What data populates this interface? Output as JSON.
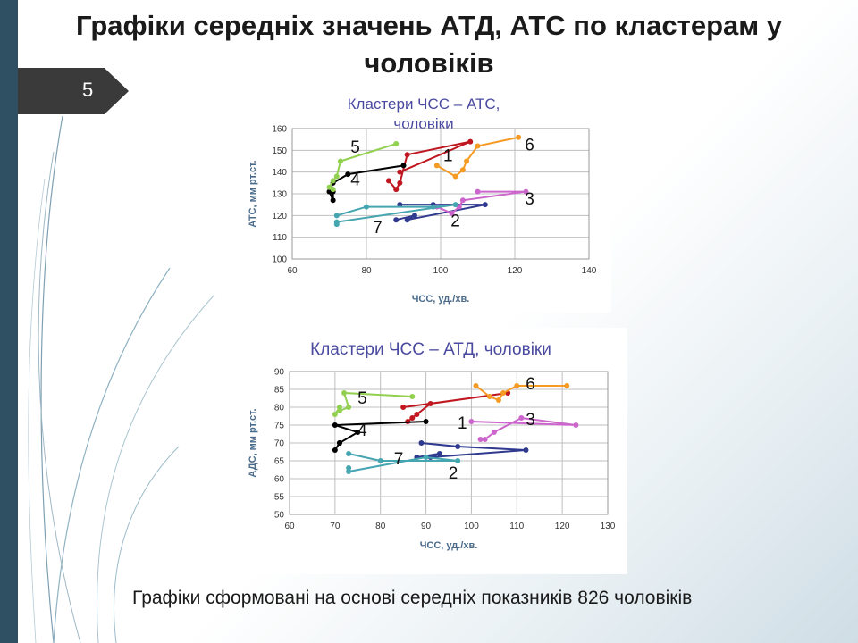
{
  "title": "Графіки середніх значень АТД, АТС по кластерам у чоловіків",
  "slide_number": "5",
  "caption": "Графіки сформовані на основі середніх показників 826 чоловіків",
  "colors": {
    "1": "#c0161f",
    "2": "#2f3a8f",
    "3": "#cc66cc",
    "4": "#000000",
    "5": "#92d050",
    "6": "#f59a23",
    "7": "#45a5b0"
  },
  "chart_data": [
    {
      "type": "line",
      "title": "Кластери ЧСС – АТС, чоловіки",
      "xlabel": "ЧСС, уд./хв.",
      "ylabel": "АТС, мм рт.ст.",
      "xlim": [
        60,
        140
      ],
      "ylim": [
        100,
        160
      ],
      "xticks": [
        "60",
        "80",
        "100",
        "120",
        "140"
      ],
      "yticks": [
        "100",
        "110",
        "120",
        "130",
        "140",
        "150",
        "160"
      ],
      "grid": true,
      "series": [
        {
          "name": "1",
          "points": [
            [
              86,
              136
            ],
            [
              88,
              132
            ],
            [
              89,
              135
            ],
            [
              91,
              148
            ],
            [
              108,
              154
            ],
            [
              89,
              140
            ]
          ]
        },
        {
          "name": "2",
          "points": [
            [
              89,
              125
            ],
            [
              98,
              125
            ],
            [
              112,
              125
            ],
            [
              91,
              118
            ],
            [
              93,
              120
            ],
            [
              88,
              118
            ]
          ]
        },
        {
          "name": "3",
          "points": [
            [
              110,
              131
            ],
            [
              123,
              131
            ],
            [
              106,
              127
            ],
            [
              105,
              124
            ],
            [
              103,
              121
            ],
            [
              99,
              124
            ]
          ]
        },
        {
          "name": "4",
          "points": [
            [
              90,
              143
            ],
            [
              75,
              139
            ],
            [
              71,
              135
            ],
            [
              70,
              131
            ],
            [
              71,
              127
            ],
            [
              71,
              131
            ]
          ]
        },
        {
          "name": "5",
          "points": [
            [
              88,
              153
            ],
            [
              73,
              145
            ],
            [
              72,
              138
            ],
            [
              71,
              136
            ],
            [
              70,
              133
            ],
            [
              71,
              132
            ]
          ]
        },
        {
          "name": "6",
          "points": [
            [
              121,
              156
            ],
            [
              110,
              152
            ],
            [
              107,
              145
            ],
            [
              106,
              141
            ],
            [
              104,
              138
            ],
            [
              99,
              143
            ]
          ]
        },
        {
          "name": "7",
          "points": [
            [
              72,
              120
            ],
            [
              80,
              124
            ],
            [
              98,
              124
            ],
            [
              104,
              125
            ],
            [
              72,
              117
            ],
            [
              72,
              116
            ]
          ]
        }
      ],
      "labels": [
        {
          "text": "1",
          "x": 102,
          "y": 145
        },
        {
          "text": "2",
          "x": 104,
          "y": 115
        },
        {
          "text": "3",
          "x": 124,
          "y": 125
        },
        {
          "text": "4",
          "x": 77,
          "y": 134
        },
        {
          "text": "5",
          "x": 77,
          "y": 149
        },
        {
          "text": "6",
          "x": 124,
          "y": 150
        },
        {
          "text": "7",
          "x": 83,
          "y": 112
        }
      ]
    },
    {
      "type": "line",
      "title": "Кластери ЧСС – АТД, чоловіки",
      "xlabel": "ЧСС, уд./хв.",
      "ylabel": "АДС, мм рт.ст.",
      "xlim": [
        60,
        130
      ],
      "ylim": [
        50,
        90
      ],
      "xticks": [
        "60",
        "70",
        "80",
        "90",
        "100",
        "110",
        "120",
        "130"
      ],
      "yticks": [
        "50",
        "55",
        "60",
        "65",
        "70",
        "75",
        "80",
        "85",
        "90"
      ],
      "grid": true,
      "series": [
        {
          "name": "1",
          "points": [
            [
              86,
              76
            ],
            [
              88,
              78
            ],
            [
              87,
              77
            ],
            [
              91,
              81
            ],
            [
              108,
              84
            ],
            [
              85,
              80
            ]
          ]
        },
        {
          "name": "2",
          "points": [
            [
              89,
              70
            ],
            [
              97,
              69
            ],
            [
              112,
              68
            ],
            [
              91,
              66
            ],
            [
              93,
              67
            ],
            [
              88,
              66
            ]
          ]
        },
        {
          "name": "3",
          "points": [
            [
              100,
              76
            ],
            [
              123,
              75
            ],
            [
              111,
              77
            ],
            [
              105,
              73
            ],
            [
              103,
              71
            ],
            [
              102,
              71
            ]
          ]
        },
        {
          "name": "4",
          "points": [
            [
              90,
              76
            ],
            [
              70,
              75
            ],
            [
              75,
              73
            ],
            [
              71,
              70
            ],
            [
              70,
              68
            ],
            [
              71,
              70
            ]
          ]
        },
        {
          "name": "5",
          "points": [
            [
              87,
              83
            ],
            [
              72,
              84
            ],
            [
              73,
              80
            ],
            [
              71,
              79
            ],
            [
              70,
              78
            ],
            [
              71,
              80
            ]
          ]
        },
        {
          "name": "6",
          "points": [
            [
              121,
              86
            ],
            [
              110,
              86
            ],
            [
              107,
              84
            ],
            [
              106,
              82
            ],
            [
              104,
              83
            ],
            [
              101,
              86
            ]
          ]
        },
        {
          "name": "7",
          "points": [
            [
              73,
              67
            ],
            [
              80,
              65
            ],
            [
              97,
              65
            ],
            [
              90,
              66
            ],
            [
              73,
              62
            ],
            [
              73,
              63
            ]
          ]
        }
      ],
      "labels": [
        {
          "text": "1",
          "x": 98,
          "y": 74
        },
        {
          "text": "2",
          "x": 96,
          "y": 60
        },
        {
          "text": "3",
          "x": 113,
          "y": 75
        },
        {
          "text": "4",
          "x": 76,
          "y": 72
        },
        {
          "text": "5",
          "x": 76,
          "y": 81
        },
        {
          "text": "6",
          "x": 113,
          "y": 85
        },
        {
          "text": "7",
          "x": 84,
          "y": 64
        }
      ]
    }
  ]
}
